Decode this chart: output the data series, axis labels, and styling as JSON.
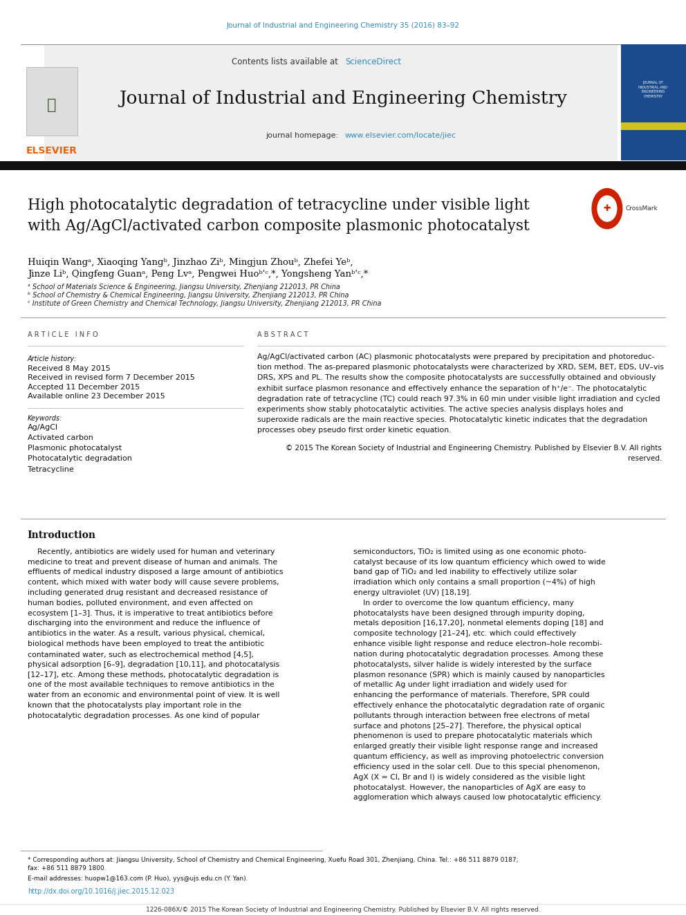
{
  "page_width": 9.92,
  "page_height": 13.23,
  "bg_color": "#ffffff",
  "journal_ref_color": "#2e8bc0",
  "journal_ref": "Journal of Industrial and Engineering Chemistry 35 (2016) 83–92",
  "header_bg": "#f0f0f0",
  "header_text": "Contents lists available at ",
  "sciencedirect_text": "ScienceDirect",
  "sciencedirect_color": "#2e8bc0",
  "journal_title": "Journal of Industrial and Engineering Chemistry",
  "journal_homepage_text": "journal homepage: ",
  "journal_url": "www.elsevier.com/locate/jiec",
  "journal_url_color": "#2e8bc0",
  "header_bar_color": "#1a1a2e",
  "elsevier_logo_color": "#e8630a",
  "article_title": "High photocatalytic degradation of tetracycline under visible light\nwith Ag/AgCl/activated carbon composite plasmonic photocatalyst",
  "affil_a": "ᵃ School of Materials Science & Engineering, Jiangsu University, Zhenjiang 212013, PR China",
  "affil_b": "ᵇ School of Chemistry & Chemical Engineering, Jiangsu University, Zhenjiang 212013, PR China",
  "affil_c": "ᶜ Institute of Green Chemistry and Chemical Technology, Jiangsu University, Zhenjiang 212013, PR China",
  "article_info_header": "A R T I C L E   I N F O",
  "article_history_label": "Article history:",
  "received": "Received 8 May 2015",
  "revised": "Received in revised form 7 December 2015",
  "accepted": "Accepted 11 December 2015",
  "online": "Available online 23 December 2015",
  "keywords_label": "Keywords:",
  "keywords": [
    "Ag/AgCl",
    "Activated carbon",
    "Plasmonic photocatalyst",
    "Photocatalytic degradation",
    "Tetracycline"
  ],
  "abstract_header": "A B S T R A C T",
  "abstract_text": "Ag/AgCl/activated carbon (AC) plasmonic photocatalysts were prepared by precipitation and photoreduction method. The as-prepared plasmonic photocatalysts were characterized by XRD, SEM, BET, EDS, UV–vis DRS, XPS and PL. The results show the composite photocatalysts are successfully obtained and obviously exhibit surface plasmon resonance and effectively enhance the separation of h⁺/e⁻. The photocatalytic degradation rate of tetracycline (TC) could reach 97.3% in 60 min under visible light irradiation and cycled experiments show stably photocatalytic activities. The active species analysis displays holes and superoxide radicals are the main reactive species. Photocatalytic kinetic indicates that the degradation processes obey pseudo first order kinetic equation.",
  "copyright_text": "© 2015 The Korean Society of Industrial and Engineering Chemistry. Published by Elsevier B.V. All rights reserved.",
  "intro_header": "Introduction",
  "intro_para1_lines": [
    "    Recently, antibiotics are widely used for human and veterinary",
    "medicine to treat and prevent disease of human and animals. The",
    "effluents of medical industry disposed a large amount of antibiotics",
    "content, which mixed with water body will cause severe problems,",
    "including generated drug resistant and decreased resistance of",
    "human bodies, polluted environment, and even affected on",
    "ecosystem [1–3]. Thus, it is imperative to treat antibiotics before",
    "discharging into the environment and reduce the influence of",
    "antibiotics in the water. As a result, various physical, chemical,",
    "biological methods have been employed to treat the antibiotic",
    "contaminated water, such as electrochemical method [4,5],",
    "physical adsorption [6–9], degradation [10,11], and photocatalysis",
    "[12–17], etc. Among these methods, photocatalytic degradation is",
    "one of the most available techniques to remove antibiotics in the",
    "water from an economic and environmental point of view. It is well",
    "known that the photocatalysts play important role in the",
    "photocatalytic degradation processes. As one kind of popular"
  ],
  "intro_para2_lines": [
    "semiconductors, TiO₂ is limited using as one economic photo-",
    "catalyst because of its low quantum efficiency which owed to wide",
    "band gap of TiO₂ and led inability to effectively utilize solar",
    "irradiation which only contains a small proportion (~4%) of high",
    "energy ultraviolet (UV) [18,19].",
    "    In order to overcome the low quantum efficiency, many",
    "photocatalysts have been designed through impurity doping,",
    "metals deposition [16,17,20], nonmetal elements doping [18] and",
    "composite technology [21–24], etc. which could effectively",
    "enhance visible light response and reduce electron–hole recombi-",
    "nation during photocatalytic degradation processes. Among these",
    "photocatalysts, silver halide is widely interested by the surface",
    "plasmon resonance (SPR) which is mainly caused by nanoparticles",
    "of metallic Ag under light irradiation and widely used for",
    "enhancing the performance of materials. Therefore, SPR could",
    "effectively enhance the photocatalytic degradation rate of organic",
    "pollutants through interaction between free electrons of metal",
    "surface and photons [25–27]. Therefore, the physical optical",
    "phenomenon is used to prepare photocatalytic materials which",
    "enlarged greatly their visible light response range and increased",
    "quantum efficiency, as well as improving photoelectric conversion",
    "efficiency used in the solar cell. Due to this special phenomenon,",
    "AgX (X = Cl, Br and I) is widely considered as the visible light",
    "photocatalyst. However, the nanoparticles of AgX are easy to",
    "agglomeration which always caused low photocatalytic efficiency."
  ],
  "footnote_corresponding": "* Corresponding authors at: Jiangsu University, School of Chemistry and Chemical Engineering, Xuefu Road 301, Zhenjiang, China. Tel.: +86 511 8879 0187; fax: +86 511 8879 1800.",
  "footnote_email": "E-mail addresses: huopw1@163.com (P. Huo), yys@ujs.edu.cn (Y. Yan).",
  "doi": "http://dx.doi.org/10.1016/j.jiec.2015.12.023",
  "issn": "1226-086X/© 2015 The Korean Society of Industrial and Engineering Chemistry. Published by Elsevier B.V. All rights reserved.",
  "text_color": "#000000",
  "link_color": "#2e8bc0"
}
